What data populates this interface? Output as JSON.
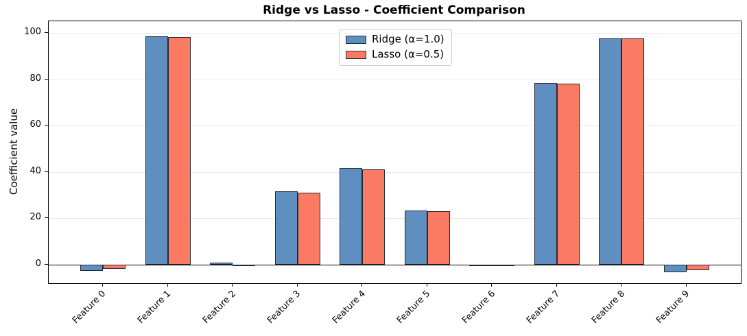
{
  "figure": {
    "title": "Ridge vs Lasso - Coefficient Comparison",
    "ylabel": "Coefficient value"
  },
  "chart_data": {
    "type": "bar",
    "title": "Ridge vs Lasso - Coefficient Comparison",
    "xlabel": "",
    "ylabel": "Coefficient value",
    "categories": [
      "Feature 0",
      "Feature 1",
      "Feature 2",
      "Feature 3",
      "Feature 4",
      "Feature 5",
      "Feature 6",
      "Feature 7",
      "Feature 8",
      "Feature 9"
    ],
    "series": [
      {
        "name": "Ridge (α=1.0)",
        "color": "#5f8fc1",
        "values": [
          -2.7,
          98.5,
          1.0,
          31.6,
          41.6,
          23.3,
          -0.3,
          78.4,
          97.6,
          -3.2
        ]
      },
      {
        "name": "Lasso (α=0.5)",
        "color": "#fb7a63",
        "values": [
          -1.8,
          98.3,
          -0.2,
          31.2,
          41.2,
          23.0,
          -0.2,
          78.1,
          97.5,
          -2.4
        ]
      }
    ],
    "yticks": [
      0,
      20,
      40,
      60,
      80,
      100
    ],
    "ylim": [
      -8,
      105
    ],
    "grid": "horizontal-y",
    "grid_color": "#e9e9e9",
    "bar_edge_color": "#24292f",
    "zero_line_color": "#000000",
    "legend_position": "upper center"
  }
}
